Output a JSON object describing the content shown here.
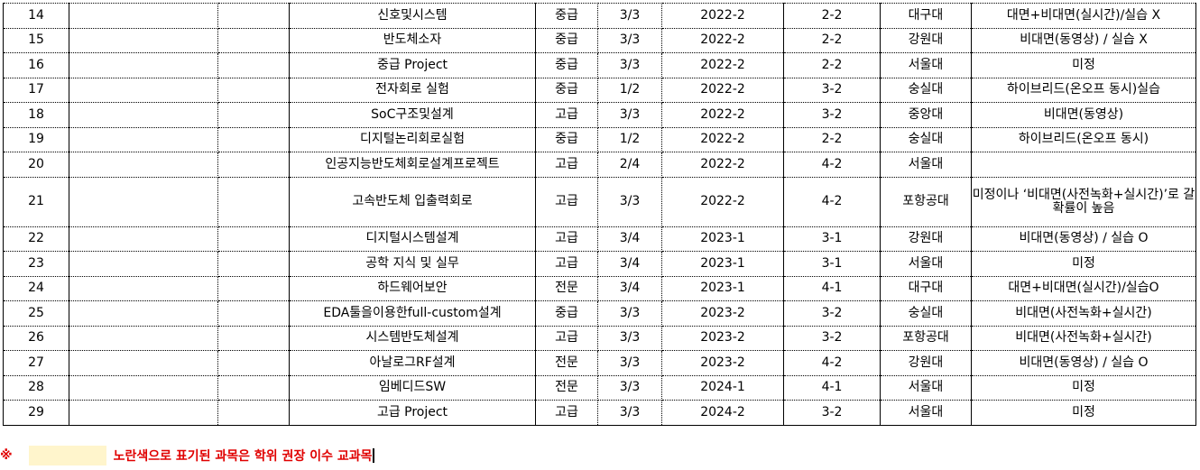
{
  "rows": [
    [
      "14",
      "",
      "",
      "신호및시스템",
      "중급",
      "3/3",
      "2022-2",
      "2-2",
      "대구대",
      "대면+비대면(실시간)/실습 X"
    ],
    [
      "15",
      "",
      "",
      "반도체소자",
      "중급",
      "3/3",
      "2022-2",
      "2-2",
      "강원대",
      "비대면(동영상) / 실습 X"
    ],
    [
      "16",
      "",
      "",
      "중급 Project",
      "중급",
      "3/3",
      "2022-2",
      "2-2",
      "서울대",
      "미정"
    ],
    [
      "17",
      "",
      "",
      "전자회로 실험",
      "중급",
      "1/2",
      "2022-2",
      "3-2",
      "숭실대",
      "하이브리드(온오프 동시)실습"
    ],
    [
      "18",
      "",
      "",
      "SoC구조및설계",
      "고급",
      "3/3",
      "2022-2",
      "3-2",
      "중앙대",
      "비대면(동영상)"
    ],
    [
      "19",
      "",
      "",
      "디지털논리회로실험",
      "중급",
      "1/2",
      "2022-2",
      "2-2",
      "숭실대",
      "하이브리드(온오프 동시)"
    ],
    [
      "20",
      "",
      "",
      "인공지능반도체회로설계프로젝트",
      "고급",
      "2/4",
      "2022-2",
      "4-2",
      "서울대",
      ""
    ],
    [
      "21",
      "",
      "",
      "고속반도체 입출력회로",
      "고급",
      "3/3",
      "2022-2",
      "4-2",
      "포항공대",
      "미정이나 ‘비대면(사전녹화+실시간)’로 갈 확률이 높음"
    ],
    [
      "22",
      "",
      "",
      "디지털시스템설계",
      "고급",
      "3/4",
      "2023-1",
      "3-1",
      "강원대",
      "비대면(동영상) / 실습 O"
    ],
    [
      "23",
      "",
      "",
      "공학 지식 및 실무",
      "고급",
      "3/4",
      "2023-1",
      "3-1",
      "서울대",
      "미정"
    ],
    [
      "24",
      "",
      "",
      "하드웨어보안",
      "전문",
      "3/4",
      "2023-1",
      "4-1",
      "대구대",
      "대면+비대면(실시간)/실습O"
    ],
    [
      "25",
      "",
      "",
      "EDA툴을이용한full-custom설계",
      "중급",
      "3/3",
      "2023-2",
      "3-2",
      "숭실대",
      "비대면(사전녹화+실시간)"
    ],
    [
      "26",
      "",
      "",
      "시스템반도체설계",
      "고급",
      "3/3",
      "2023-2",
      "3-2",
      "포항공대",
      "비대면(사전녹화+실시간)"
    ],
    [
      "27",
      "",
      "",
      "아날로그RF설계",
      "전문",
      "3/3",
      "2023-2",
      "4-2",
      "강원대",
      "비대면(동영상) / 실습 O"
    ],
    [
      "28",
      "",
      "",
      "임베디드SW",
      "전문",
      "3/3",
      "2024-1",
      "4-1",
      "서울대",
      "미정"
    ],
    [
      "29",
      "",
      "",
      "고급 Project",
      "고급",
      "3/3",
      "2024-2",
      "3-2",
      "서울대",
      "미정"
    ]
  ],
  "note": {
    "symbol": "※",
    "text": "노란색으로 표기된 과목은 학위 권장 이수 교과목",
    "highlight_color": "#fff5cc",
    "text_color": "#e00000"
  }
}
